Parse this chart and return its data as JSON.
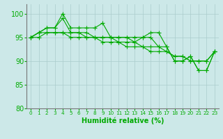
{
  "x": [
    0,
    1,
    2,
    3,
    4,
    5,
    6,
    7,
    8,
    9,
    10,
    11,
    12,
    13,
    14,
    15,
    16,
    17,
    18,
    19,
    20,
    21,
    22,
    23
  ],
  "lines": [
    [
      95,
      96,
      97,
      97,
      100,
      97,
      97,
      97,
      97,
      98,
      95,
      95,
      95,
      95,
      95,
      96,
      96,
      93,
      90,
      90,
      91,
      88,
      88,
      92
    ],
    [
      95,
      96,
      97,
      97,
      99,
      96,
      96,
      96,
      95,
      95,
      95,
      95,
      95,
      94,
      95,
      95,
      93,
      93,
      90,
      90,
      91,
      88,
      88,
      92
    ],
    [
      95,
      96,
      96,
      96,
      96,
      96,
      96,
      95,
      95,
      95,
      95,
      94,
      94,
      94,
      93,
      93,
      93,
      92,
      91,
      91,
      90,
      90,
      90,
      92
    ],
    [
      95,
      95,
      96,
      96,
      96,
      95,
      95,
      95,
      95,
      94,
      94,
      94,
      93,
      93,
      93,
      92,
      92,
      92,
      91,
      91,
      90,
      90,
      90,
      92
    ]
  ],
  "ylim": [
    80,
    102
  ],
  "xlim": [
    -0.5,
    23.5
  ],
  "yticks": [
    80,
    85,
    90,
    95,
    100
  ],
  "xticks": [
    0,
    1,
    2,
    3,
    4,
    5,
    6,
    7,
    8,
    9,
    10,
    11,
    12,
    13,
    14,
    15,
    16,
    17,
    18,
    19,
    20,
    21,
    22,
    23
  ],
  "xlabel": "Humidité relative (%)",
  "bg_color": "#cce8e8",
  "grid_color": "#aacccc",
  "line_color": "#00aa00",
  "tick_color": "#00aa00",
  "label_color": "#00aa00"
}
